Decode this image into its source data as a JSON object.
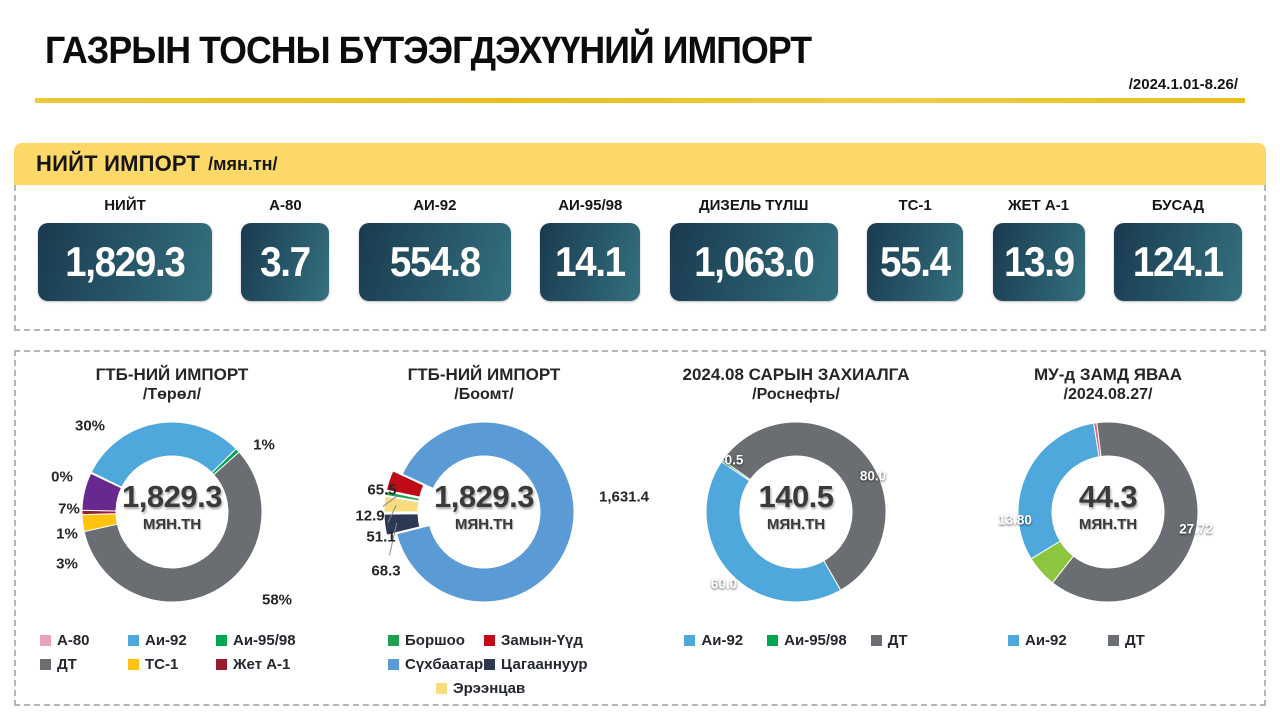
{
  "header": {
    "title": "ГАЗРЫН ТОСНЫ БҮТЭЭГДЭХҮҮНИЙ ИМПОРТ",
    "period": "/2024.1.01-8.26/"
  },
  "banner": {
    "title": "НИЙТ ИМПОРТ",
    "unit": "/мян.тн/"
  },
  "totals": {
    "cards": [
      {
        "label": "НИЙТ",
        "value": "1,829.3"
      },
      {
        "label": "А-80",
        "value": "3.7"
      },
      {
        "label": "АИ-92",
        "value": "554.8"
      },
      {
        "label": "АИ-95/98",
        "value": "14.1"
      },
      {
        "label": "ДИЗЕЛЬ ТҮЛШ",
        "value": "1,063.0"
      },
      {
        "label": "ТС-1",
        "value": "55.4"
      },
      {
        "label": "ЖЕТ А-1",
        "value": "13.9"
      },
      {
        "label": "БУСАД",
        "value": "124.1"
      }
    ]
  },
  "colors": {
    "a80_pink": "#E9A2B8",
    "ai92_blue": "#4FA8DC",
    "ai9598_green": "#00A650",
    "dt_gray": "#6A6D71",
    "ts1_yellow": "#FFC20D",
    "jeta1_crimson": "#9B1B30",
    "busad_purple": "#67298E",
    "banner_yellow": "#FBD868",
    "rule_gold": "#E9BD1C",
    "card_teal_dark": "#1A3A4E",
    "card_teal_light": "#35707F"
  },
  "chart_data": [
    {
      "type": "donut",
      "title": "ГТБ-НИЙ ИМПОРТ",
      "subtitle": "/Төрөл/",
      "center_value": "1,829.3",
      "center_unit": "МЯН.ТН",
      "start_angle": 295.5,
      "segments": [
        {
          "name": "А-80",
          "value": 0.2,
          "color": "#E9A2B8",
          "label": "0%",
          "label_pos": [
            -110,
            -35
          ]
        },
        {
          "name": "Аи-92",
          "value": 30.33,
          "color": "#4FA8DC",
          "label": "30%",
          "label_pos": [
            -82,
            -86
          ]
        },
        {
          "name": "Аи-95/98",
          "value": 0.77,
          "color": "#00A650",
          "label": "1%",
          "label_pos": [
            92,
            -67
          ]
        },
        {
          "name": "ДТ",
          "value": 58.11,
          "color": "#6A6D71",
          "label": "58%",
          "label_pos": [
            105,
            88
          ]
        },
        {
          "name": "ТС-1",
          "value": 3.03,
          "color": "#FFC20D",
          "label": "3%",
          "label_pos": [
            -105,
            52
          ]
        },
        {
          "name": "Жет А-1",
          "value": 0.76,
          "color": "#9B1B30",
          "label": "1%",
          "label_pos": [
            -105,
            22
          ]
        },
        {
          "name": "Бусад",
          "value": 6.78,
          "color": "#67298E",
          "label": "7%",
          "label_pos": [
            -103,
            -3
          ]
        }
      ],
      "legend": [
        {
          "label": "А-80",
          "color": "#E9A2B8"
        },
        {
          "label": "Аи-92",
          "color": "#4FA8DC"
        },
        {
          "label": "Аи-95/98",
          "color": "#00A650"
        },
        {
          "label": "ДТ",
          "color": "#6A6D71"
        },
        {
          "label": "ТС-1",
          "color": "#FFC20D"
        },
        {
          "label": "Жет А-1",
          "color": "#9B1B30"
        }
      ],
      "legend_item_width": 88
    },
    {
      "type": "donut",
      "title": "ГТБ-НИЙ ИМПОРТ",
      "subtitle": "/Боомт/",
      "center_value": "1,829.3",
      "center_unit": "МЯН.ТН",
      "start_angle": 256,
      "segments": [
        {
          "name": "Цагааннуур",
          "value": 68.3,
          "color": "#2B3A52",
          "label": "68.3",
          "label_pos": [
            -98,
            59
          ],
          "explode": true,
          "leader": true
        },
        {
          "name": "Эрээнцав",
          "value": 51.1,
          "color": "#F9DC7D",
          "label": "51.1",
          "label_pos": [
            -103,
            25
          ],
          "explode": true,
          "leader": true
        },
        {
          "name": "Боршоо",
          "value": 12.9,
          "color": "#1FA04C",
          "label": "12.9",
          "label_pos": [
            -114,
            4
          ],
          "explode": true,
          "leader": true
        },
        {
          "name": "Замын-Үүд",
          "value": 65.5,
          "color": "#C00A17",
          "label": "65.5",
          "label_pos": [
            -102,
            -22
          ],
          "explode": true
        },
        {
          "name": "Сүхбаатар",
          "value": 1631.4,
          "color": "#5B9BD5",
          "label": "1,631.4",
          "label_pos": [
            140,
            -15
          ]
        }
      ],
      "legend": [
        {
          "label": "Боршоо",
          "color": "#1FA04C"
        },
        {
          "label": "Замын-Үүд",
          "color": "#C00A17"
        },
        {
          "label": "Сүхбаатар",
          "color": "#5B9BD5"
        },
        {
          "label": "Цагааннуур",
          "color": "#2B3A52"
        },
        {
          "label": "Эрээнцав",
          "color": "#F9DC7D"
        }
      ],
      "legend_item_width": 96
    },
    {
      "type": "donut",
      "title": "2024.08 САРЫН ЗАХИАЛГА",
      "subtitle": "/Роснефть/",
      "center_value": "140.5",
      "center_unit": "МЯН.ТН",
      "start_angle": 304,
      "segments": [
        {
          "name": "Аи-95/98",
          "value": 0.5,
          "color": "#00A650",
          "label": "0.5",
          "label_pos": [
            -62,
            -52
          ],
          "white": true
        },
        {
          "name": "ДТ",
          "value": 80.0,
          "color": "#6A6D71",
          "label": "80.0",
          "label_pos": [
            77,
            -36
          ],
          "white": true
        },
        {
          "name": "Аи-92",
          "value": 60.0,
          "color": "#4FA8DC",
          "label": "60.0",
          "label_pos": [
            -72,
            72
          ],
          "white": true
        }
      ],
      "legend": [
        {
          "label": "Аи-92",
          "color": "#4FA8DC"
        },
        {
          "label": "Аи-95/98",
          "color": "#00A650"
        },
        {
          "label": "ДТ",
          "color": "#6A6D71"
        }
      ],
      "legend_item_width": 0
    },
    {
      "type": "donut",
      "title": "МУ-д ЗАМД ЯВАА",
      "subtitle": "/2024.08.27/",
      "center_value": "44.3",
      "center_unit": "МЯН.ТН",
      "start_angle": 350.8,
      "segments": [
        {
          "name": "unlabeled-pink",
          "value": 0.25,
          "color": "#D9607F"
        },
        {
          "name": "ДТ",
          "value": 27.72,
          "color": "#6A6D71",
          "label": "27.72",
          "label_pos": [
            88,
            17
          ],
          "white": true
        },
        {
          "name": "unlabeled-green",
          "value": 2.53,
          "color": "#8CC63F"
        },
        {
          "name": "Аи-92",
          "value": 13.8,
          "color": "#4FA8DC",
          "label": "13.80",
          "label_pos": [
            -93,
            8
          ],
          "white": true
        }
      ],
      "legend": [
        {
          "label": "Аи-92",
          "color": "#4FA8DC"
        },
        {
          "label": "ДТ",
          "color": "#6A6D71"
        }
      ],
      "legend_item_width": 100
    }
  ]
}
